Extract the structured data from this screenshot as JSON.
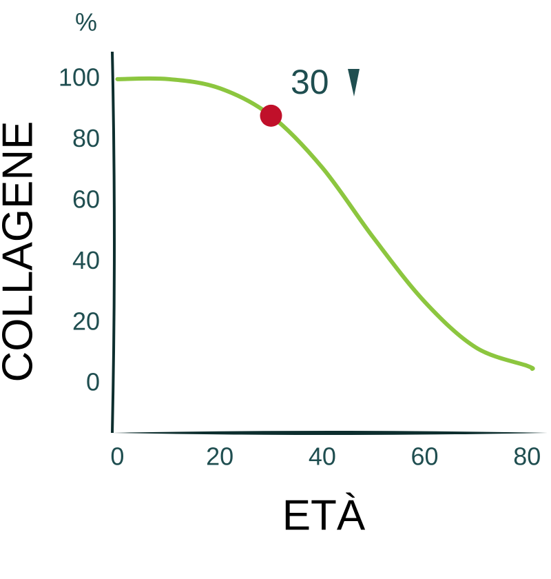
{
  "chart_data": {
    "type": "line",
    "y_unit": "%",
    "xlabel": "ETÀ",
    "ylabel": "COLLAGENE",
    "x": [
      0,
      10,
      20,
      30,
      40,
      50,
      60,
      70,
      80,
      81
    ],
    "series": [
      {
        "color": "#8cc63f",
        "values": [
          100,
          100,
          97,
          88,
          71,
          48,
          27,
          12,
          6,
          5
        ]
      }
    ],
    "highlight": {
      "x": 30,
      "y": 88,
      "color": "#c0102a",
      "label": "30"
    },
    "xlim": [
      -1,
      84
    ],
    "xticks": [
      0,
      20,
      40,
      60,
      80
    ],
    "ylim": [
      -16,
      109
    ],
    "yticks": [
      0,
      20,
      40,
      60,
      80,
      100
    ]
  }
}
